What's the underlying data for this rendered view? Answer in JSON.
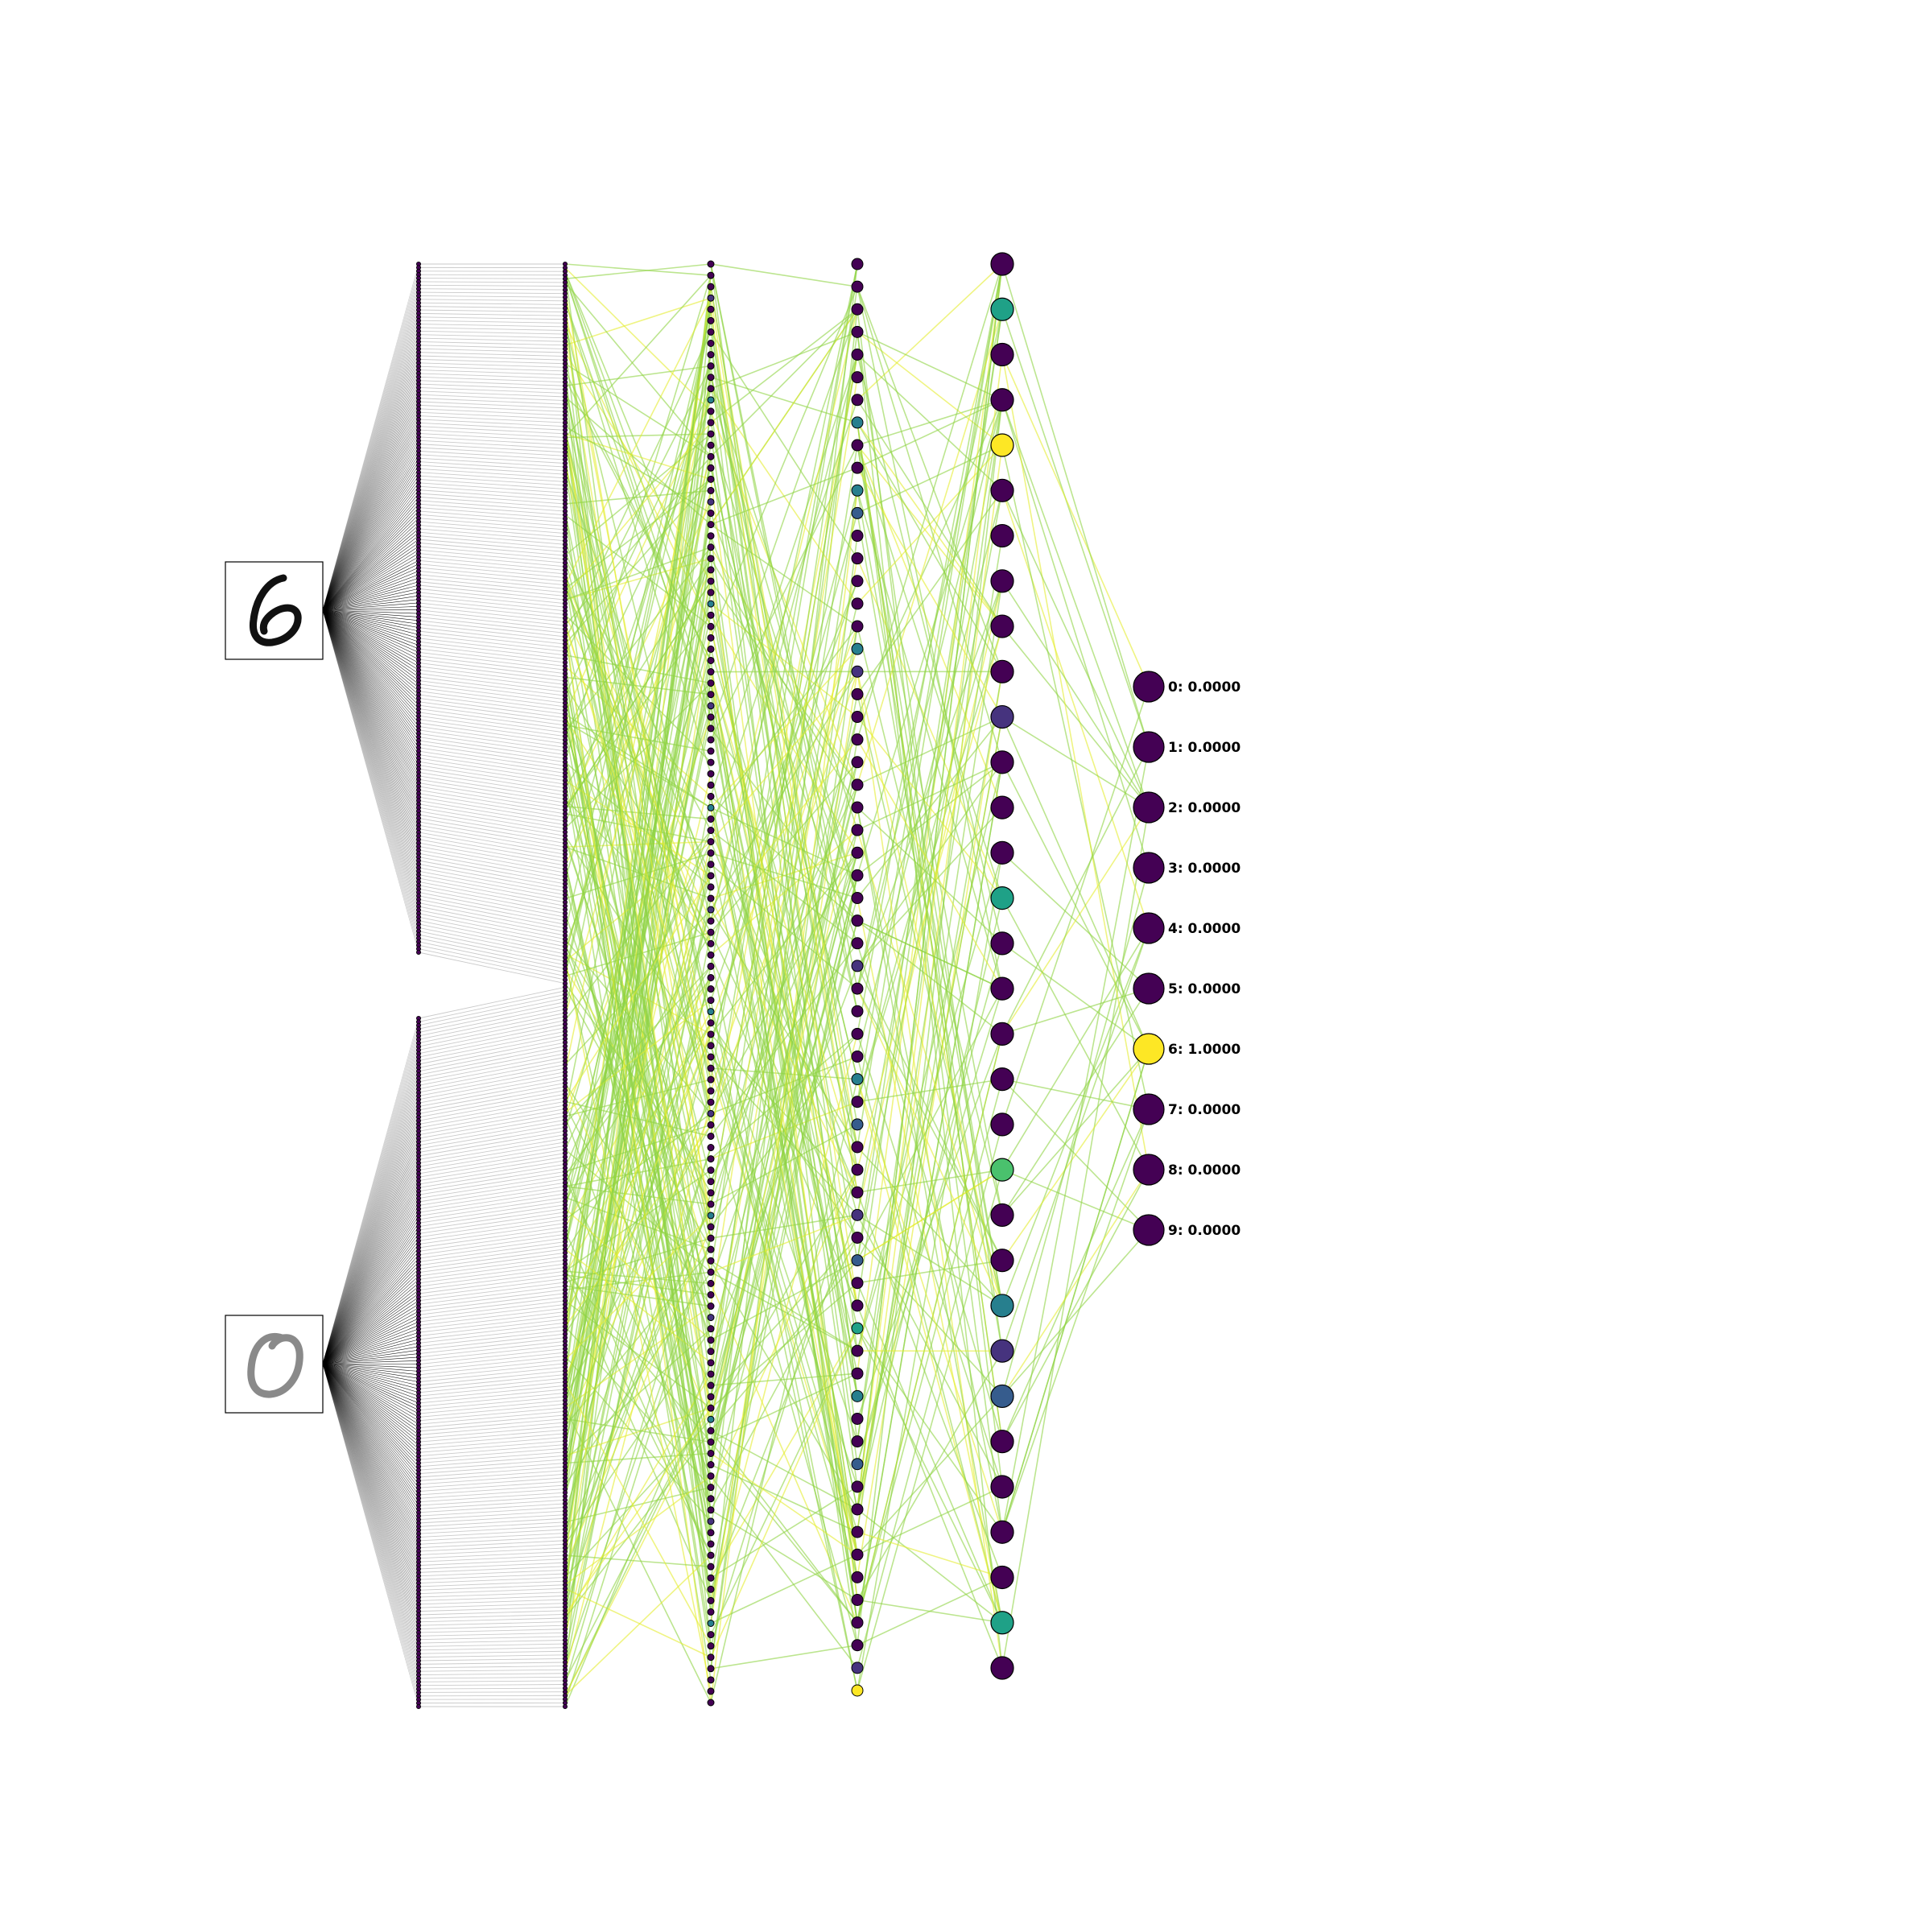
{
  "input_images": [
    {
      "digit_glyph": "6",
      "style": "black handwritten digit"
    },
    {
      "digit_glyph": "0",
      "style": "grey handwritten digit"
    }
  ],
  "colormap": "viridis",
  "palette": {
    "dark_purple": "#440154",
    "indigo": "#46337e",
    "blue": "#365c8d",
    "teal": "#277f8e",
    "green_teal": "#1fa187",
    "green": "#4ac16d",
    "yellow": "#fde725",
    "edge_green": "#8fd444",
    "edge_yellow": "#e4ec2f",
    "input_edge": "#000000",
    "node_outline": "#000000"
  },
  "layers": [
    {
      "name": "input",
      "nodes_per_image": 196
    },
    {
      "name": "hidden1",
      "nodes": 392
    },
    {
      "name": "hidden2",
      "nodes": 128
    },
    {
      "name": "hidden3",
      "nodes": 64
    },
    {
      "name": "hidden4",
      "nodes": 32
    },
    {
      "name": "output",
      "nodes": 10
    }
  ],
  "hidden3_activations": [
    "dark_purple",
    "dark_purple",
    "dark_purple",
    "dark_purple",
    "dark_purple",
    "dark_purple",
    "dark_purple",
    "teal",
    "dark_purple",
    "dark_purple",
    "teal",
    "blue",
    "dark_purple",
    "dark_purple",
    "dark_purple",
    "dark_purple",
    "dark_purple",
    "teal",
    "indigo",
    "dark_purple",
    "dark_purple",
    "dark_purple",
    "dark_purple",
    "dark_purple",
    "dark_purple",
    "dark_purple",
    "dark_purple",
    "dark_purple",
    "dark_purple",
    "dark_purple",
    "dark_purple",
    "indigo",
    "dark_purple",
    "dark_purple",
    "dark_purple",
    "dark_purple",
    "teal",
    "dark_purple",
    "blue",
    "dark_purple",
    "dark_purple",
    "dark_purple",
    "indigo",
    "dark_purple",
    "blue",
    "dark_purple",
    "dark_purple",
    "green_teal",
    "dark_purple",
    "dark_purple",
    "teal",
    "dark_purple",
    "dark_purple",
    "blue",
    "dark_purple",
    "dark_purple",
    "dark_purple",
    "dark_purple",
    "dark_purple",
    "dark_purple",
    "dark_purple",
    "dark_purple",
    "indigo",
    "yellow"
  ],
  "hidden4_activations": [
    "dark_purple",
    "green_teal",
    "dark_purple",
    "dark_purple",
    "yellow",
    "dark_purple",
    "dark_purple",
    "dark_purple",
    "dark_purple",
    "dark_purple",
    "indigo",
    "dark_purple",
    "dark_purple",
    "dark_purple",
    "green_teal",
    "dark_purple",
    "dark_purple",
    "dark_purple",
    "dark_purple",
    "dark_purple",
    "green",
    "dark_purple",
    "dark_purple",
    "teal",
    "indigo",
    "blue",
    "dark_purple",
    "dark_purple",
    "dark_purple",
    "dark_purple",
    "green_teal",
    "dark_purple"
  ],
  "outputs": [
    {
      "text": "0: 0.0000",
      "value": 0.0
    },
    {
      "text": "1: 0.0000",
      "value": 0.0
    },
    {
      "text": "2: 0.0000",
      "value": 0.0
    },
    {
      "text": "3: 0.0000",
      "value": 0.0
    },
    {
      "text": "4: 0.0000",
      "value": 0.0
    },
    {
      "text": "5: 0.0000",
      "value": 0.0
    },
    {
      "text": "6: 1.0000",
      "value": 1.0
    },
    {
      "text": "7: 0.0000",
      "value": 0.0
    },
    {
      "text": "8: 0.0000",
      "value": 0.0
    },
    {
      "text": "9: 0.0000",
      "value": 0.0
    }
  ]
}
